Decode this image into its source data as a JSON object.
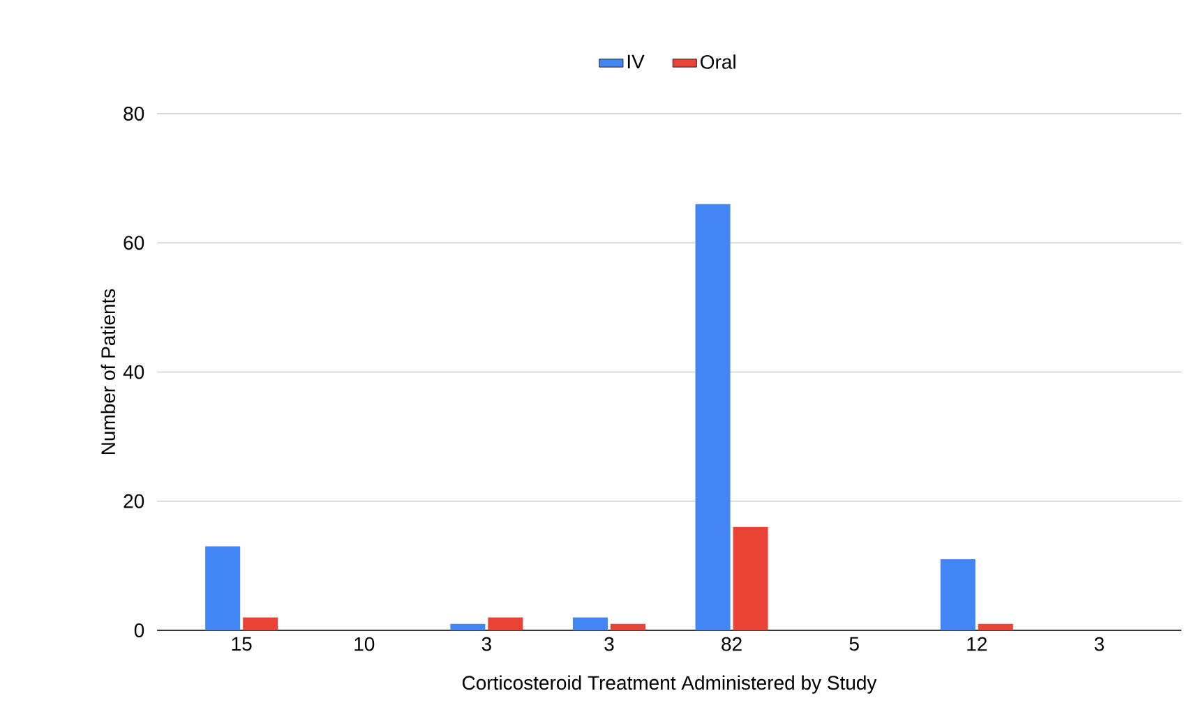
{
  "chart_data": {
    "type": "bar",
    "xlabel": "Corticosteroid Treatment Administered by Study",
    "ylabel": "Number of Patients",
    "categories": [
      "15",
      "10",
      "3",
      "3",
      "82",
      "5",
      "12",
      "3"
    ],
    "series": [
      {
        "name": "IV",
        "color": "#4285f4",
        "values": [
          13,
          0,
          1,
          2,
          66,
          0,
          11,
          0
        ]
      },
      {
        "name": "Oral",
        "color": "#ea4335",
        "values": [
          2,
          0,
          2,
          1,
          16,
          0,
          1,
          0
        ]
      }
    ],
    "ylim": [
      0,
      80
    ],
    "yticks": [
      0,
      20,
      40,
      60,
      80
    ],
    "grid": "y",
    "legend": "top"
  }
}
